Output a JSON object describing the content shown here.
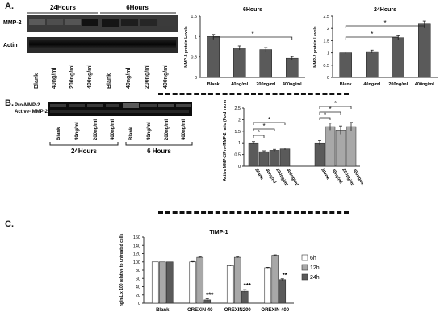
{
  "panel_labels": {
    "a": "A.",
    "b": "B.",
    "c": "C."
  },
  "blot_a": {
    "groups": [
      "24Hours",
      "6Hours"
    ],
    "rows": [
      "MMP-2",
      "Actin"
    ],
    "lanes": [
      "Blank",
      "40ng/ml",
      "200ng/ml",
      "400ng/ml",
      "Blank",
      "40ng/ml",
      "200ng/ml",
      "400ng/ml"
    ]
  },
  "blot_b": {
    "rows": [
      "Pro-MMP-2",
      "Active- MMP-2"
    ],
    "lanes": [
      "Blank",
      "40ng/ml",
      "200ng/ml",
      "400ng/ml",
      "Blank",
      "40ng/ml",
      "200ng/ml",
      "400ng/ml"
    ],
    "groups": [
      "24Hours",
      "6 Hours"
    ]
  },
  "colors": {
    "bar_dark": "#5a5a5a",
    "bar_light": "#a8a8a8",
    "bar_white": "#ffffff",
    "axis": "#333333"
  },
  "chart_data": [
    {
      "id": "a-6h",
      "type": "bar",
      "title": "6Hours",
      "ylabel": "MMP-2 protein Levels",
      "categories": [
        "Blank",
        "40ng/ml",
        "200ng/ml",
        "400ng/ml"
      ],
      "values": [
        1.0,
        0.72,
        0.68,
        0.47
      ],
      "errors": [
        0.05,
        0.05,
        0.05,
        0.04
      ],
      "ylim": [
        0,
        1.5
      ],
      "yticks": [
        "0",
        "0.5",
        "1",
        "1.5"
      ],
      "significance": [
        {
          "from": 0,
          "to": 3,
          "label": "*"
        }
      ]
    },
    {
      "id": "a-24h",
      "type": "bar",
      "title": "24Hours",
      "ylabel": "MMP-2 protein Levels",
      "categories": [
        "Blank",
        "40ng/ml",
        "200ng/ml",
        "400ng/ml"
      ],
      "values": [
        1.0,
        1.05,
        1.62,
        2.18
      ],
      "errors": [
        0.04,
        0.06,
        0.08,
        0.12
      ],
      "ylim": [
        0,
        2.5
      ],
      "yticks": [
        "0",
        "0.5",
        "1",
        "1.5",
        "2",
        "2.5"
      ],
      "significance": [
        {
          "from": 0,
          "to": 2,
          "label": "*"
        },
        {
          "from": 0,
          "to": 3,
          "label": "*"
        }
      ]
    },
    {
      "id": "b-ratio",
      "type": "bar",
      "ylabel": "Active MMP-2/Pro-MMP-2 ratio (Fold increase)",
      "categories": [
        "Blank",
        "40ng/ml",
        "200ng/ml",
        "400ng/ml",
        "Blank",
        "40ng/ml",
        "200ng/ml",
        "400ng/ml"
      ],
      "values": [
        1.0,
        0.62,
        0.68,
        0.74,
        1.0,
        1.7,
        1.55,
        1.7
      ],
      "errors": [
        0.05,
        0.04,
        0.04,
        0.04,
        0.1,
        0.15,
        0.18,
        0.18
      ],
      "ylim": [
        0,
        2.5
      ],
      "yticks": [
        "0",
        "0.5",
        "1",
        "1.5",
        "2",
        "2.5"
      ],
      "significance": [
        {
          "from": 0,
          "to": 1,
          "label": "*"
        },
        {
          "from": 0,
          "to": 2,
          "label": "*"
        },
        {
          "from": 0,
          "to": 3,
          "label": "*"
        },
        {
          "from": 4,
          "to": 5,
          "label": "*"
        },
        {
          "from": 4,
          "to": 6,
          "label": "*"
        },
        {
          "from": 4,
          "to": 7,
          "label": "*"
        }
      ]
    },
    {
      "id": "c-timp1",
      "type": "bar",
      "title": "TIMP-1",
      "ylabel": "ng/mL x 100 relative to untreated cells",
      "categories": [
        "Blank",
        "OREXIN 40",
        "OREXIN200",
        "OREXIN 400"
      ],
      "series": [
        {
          "name": "6h",
          "values": [
            100,
            100,
            91,
            86
          ],
          "errors": [
            0,
            1,
            1,
            1
          ]
        },
        {
          "name": "12h",
          "values": [
            100,
            111,
            111,
            116
          ],
          "errors": [
            0,
            1,
            1,
            1
          ]
        },
        {
          "name": "24h",
          "values": [
            100,
            8,
            29,
            57
          ],
          "errors": [
            0,
            3,
            4,
            2
          ]
        }
      ],
      "ylim": [
        0,
        160
      ],
      "yticks": [
        "0",
        "20",
        "40",
        "60",
        "80",
        "100",
        "120",
        "140",
        "160"
      ],
      "annotations": [
        {
          "category": 1,
          "series": 2,
          "label": "***"
        },
        {
          "category": 2,
          "series": 2,
          "label": "***"
        },
        {
          "category": 3,
          "series": 2,
          "label": "**"
        }
      ]
    }
  ]
}
